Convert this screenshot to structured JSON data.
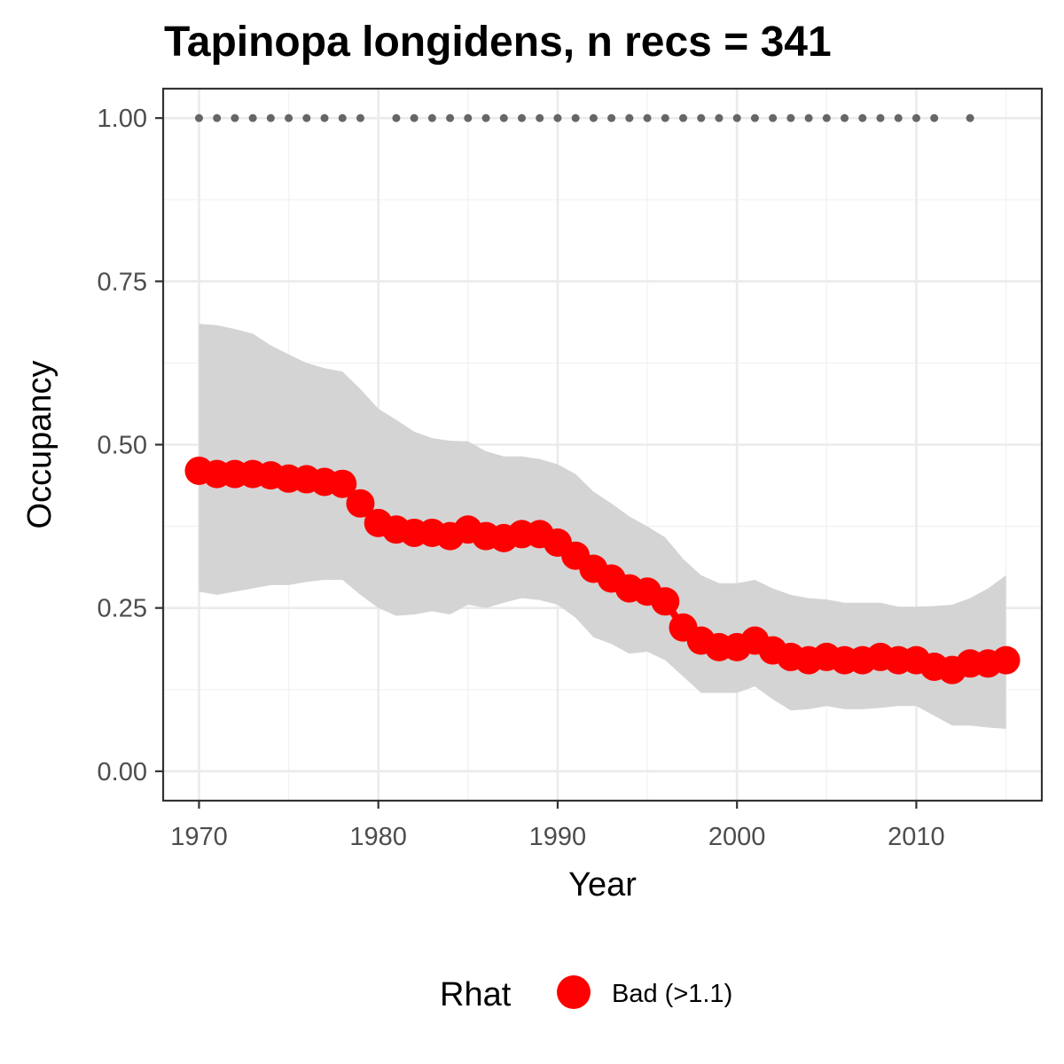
{
  "chart_data": {
    "type": "line",
    "title": "Tapinopa longidens, n recs = 341",
    "xlabel": "Year",
    "ylabel": "Occupancy",
    "xlim": [
      1968,
      2017
    ],
    "ylim": [
      -0.045,
      1.045
    ],
    "x_ticks": [
      "1970",
      "1980",
      "1990",
      "2000",
      "2010"
    ],
    "y_ticks": [
      "0.00",
      "0.25",
      "0.50",
      "0.75",
      "1.00"
    ],
    "grid": true,
    "legend": {
      "title": "Rhat",
      "placement": "bottom",
      "entries": [
        "Bad (>1.1)"
      ]
    },
    "colors": {
      "series": "#ff0000",
      "ribbon": "#d4d4d4",
      "records": "#666666"
    },
    "series": [
      {
        "name": "Bad (>1.1)",
        "x": [
          1970,
          1971,
          1972,
          1973,
          1974,
          1975,
          1976,
          1977,
          1978,
          1979,
          1980,
          1981,
          1982,
          1983,
          1984,
          1985,
          1986,
          1987,
          1988,
          1989,
          1990,
          1991,
          1992,
          1993,
          1994,
          1995,
          1996,
          1997,
          1998,
          1999,
          2000,
          2001,
          2002,
          2003,
          2004,
          2005,
          2006,
          2007,
          2008,
          2009,
          2010,
          2011,
          2012,
          2013,
          2014,
          2015
        ],
        "y": [
          0.46,
          0.455,
          0.455,
          0.455,
          0.453,
          0.448,
          0.447,
          0.443,
          0.44,
          0.41,
          0.38,
          0.37,
          0.365,
          0.365,
          0.36,
          0.37,
          0.36,
          0.357,
          0.363,
          0.363,
          0.35,
          0.33,
          0.31,
          0.295,
          0.28,
          0.275,
          0.26,
          0.22,
          0.2,
          0.19,
          0.19,
          0.2,
          0.185,
          0.175,
          0.17,
          0.175,
          0.17,
          0.17,
          0.175,
          0.17,
          0.17,
          0.16,
          0.155,
          0.165,
          0.165,
          0.17
        ],
        "lower": [
          0.275,
          0.27,
          0.275,
          0.28,
          0.285,
          0.285,
          0.29,
          0.293,
          0.293,
          0.27,
          0.25,
          0.238,
          0.24,
          0.245,
          0.24,
          0.255,
          0.25,
          0.258,
          0.265,
          0.262,
          0.255,
          0.235,
          0.205,
          0.195,
          0.18,
          0.183,
          0.17,
          0.145,
          0.12,
          0.12,
          0.12,
          0.13,
          0.11,
          0.093,
          0.095,
          0.1,
          0.095,
          0.095,
          0.097,
          0.1,
          0.1,
          0.085,
          0.07,
          0.07,
          0.067,
          0.065
        ],
        "upper": [
          0.685,
          0.683,
          0.677,
          0.67,
          0.652,
          0.638,
          0.625,
          0.617,
          0.612,
          0.585,
          0.555,
          0.538,
          0.52,
          0.51,
          0.506,
          0.505,
          0.49,
          0.482,
          0.482,
          0.478,
          0.47,
          0.455,
          0.428,
          0.41,
          0.39,
          0.375,
          0.358,
          0.325,
          0.3,
          0.288,
          0.288,
          0.293,
          0.28,
          0.27,
          0.265,
          0.263,
          0.258,
          0.258,
          0.258,
          0.252,
          0.252,
          0.253,
          0.255,
          0.265,
          0.28,
          0.3
        ]
      },
      {
        "name": "records",
        "x": [
          1970,
          1971,
          1972,
          1973,
          1974,
          1975,
          1976,
          1977,
          1978,
          1979,
          1981,
          1982,
          1983,
          1984,
          1985,
          1986,
          1987,
          1988,
          1989,
          1990,
          1991,
          1992,
          1993,
          1994,
          1995,
          1996,
          1997,
          1998,
          1999,
          2000,
          2001,
          2002,
          2003,
          2004,
          2005,
          2006,
          2007,
          2008,
          2009,
          2010,
          2011,
          2013
        ],
        "y": [
          1,
          1,
          1,
          1,
          1,
          1,
          1,
          1,
          1,
          1,
          1,
          1,
          1,
          1,
          1,
          1,
          1,
          1,
          1,
          1,
          1,
          1,
          1,
          1,
          1,
          1,
          1,
          1,
          1,
          1,
          1,
          1,
          1,
          1,
          1,
          1,
          1,
          1,
          1,
          1,
          1,
          1
        ]
      }
    ]
  }
}
